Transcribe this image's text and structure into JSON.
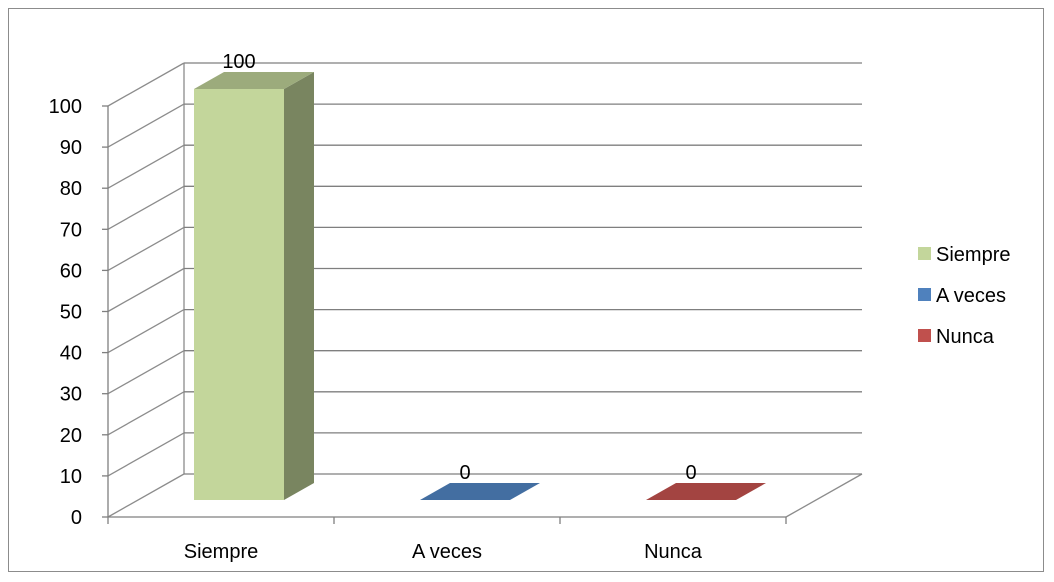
{
  "chart_data": {
    "type": "bar",
    "style": "3d-column",
    "categories": [
      "Siempre",
      "A veces",
      "Nunca"
    ],
    "series": [
      {
        "name": "Siempre",
        "values": [
          100,
          null,
          null
        ],
        "color": "#c3d69b"
      },
      {
        "name": "A veces",
        "values": [
          null,
          0,
          null
        ],
        "color": "#4f81bd"
      },
      {
        "name": "Nunca",
        "values": [
          null,
          null,
          0
        ],
        "color": "#c0504d"
      }
    ],
    "data_labels": [
      "100",
      "0",
      "0"
    ],
    "ylim": [
      0,
      100
    ],
    "yticks": [
      "0",
      "10",
      "20",
      "30",
      "40",
      "50",
      "60",
      "70",
      "80",
      "90",
      "100"
    ],
    "grid": true,
    "legend_position": "right"
  }
}
